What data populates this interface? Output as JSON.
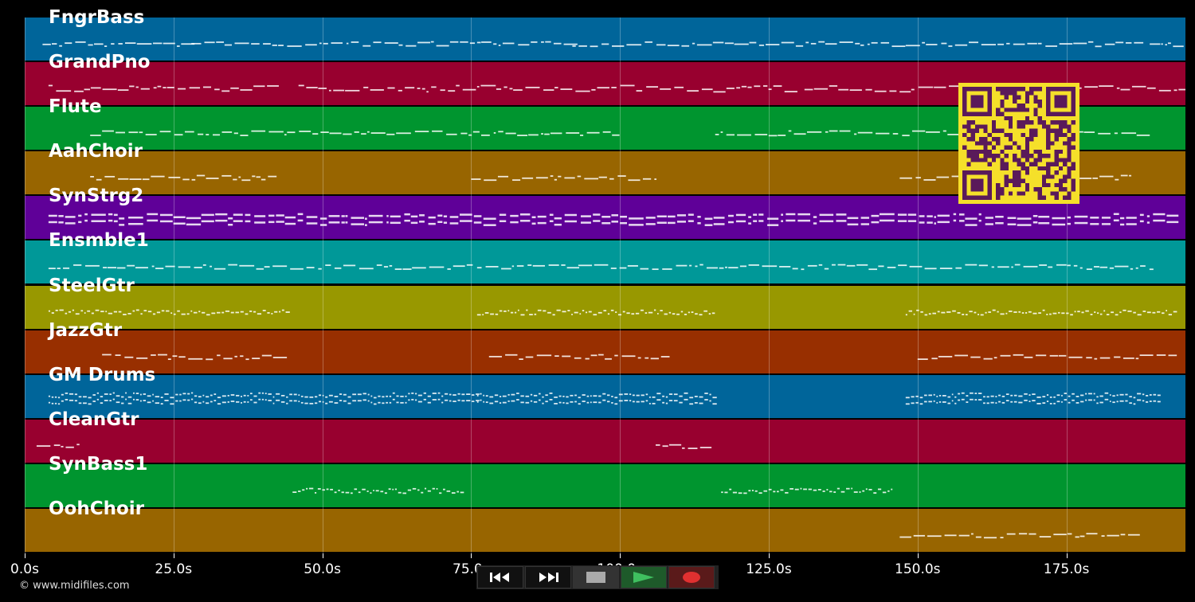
{
  "tracks": [
    {
      "name": "FngrBass",
      "color": "#00659a"
    },
    {
      "name": "GrandPno",
      "color": "#98002f"
    },
    {
      "name": "Flute",
      "color": "#00952f"
    },
    {
      "name": "AahChoir",
      "color": "#986500"
    },
    {
      "name": "SynStrg2",
      "color": "#5f0098"
    },
    {
      "name": "Ensmble1",
      "color": "#009898"
    },
    {
      "name": "SteelGtr",
      "color": "#989800"
    },
    {
      "name": "JazzGtr",
      "color": "#982f00"
    },
    {
      "name": "GM Drums",
      "color": "#00659a"
    },
    {
      "name": "CleanGtr",
      "color": "#98002f"
    },
    {
      "name": "SynBass1",
      "color": "#00952f"
    },
    {
      "name": "OohChoir",
      "color": "#986500"
    }
  ],
  "timeline": {
    "max_seconds": 195,
    "ticks": [
      {
        "value": 0,
        "label": "0.0s"
      },
      {
        "value": 25,
        "label": "25.0s"
      },
      {
        "value": 50,
        "label": "50.0s"
      },
      {
        "value": 75,
        "label": "75.0s"
      },
      {
        "value": 100,
        "label": "100.0s"
      },
      {
        "value": 125,
        "label": "125.0s"
      },
      {
        "value": 150,
        "label": "150.0s"
      },
      {
        "value": 175,
        "label": "175.0s"
      }
    ]
  },
  "copyright": "© www.midifiles.com",
  "transport": {
    "rewind_icon": "rewind-icon",
    "forward_icon": "fast-forward-icon",
    "stop_icon": "stop-icon",
    "play_icon": "play-icon",
    "record_icon": "record-icon",
    "play_color": "#3fbf5f",
    "record_color": "#e03030"
  },
  "qr": {
    "foreground": "#5a1a5a",
    "background": "#f5e02a"
  }
}
